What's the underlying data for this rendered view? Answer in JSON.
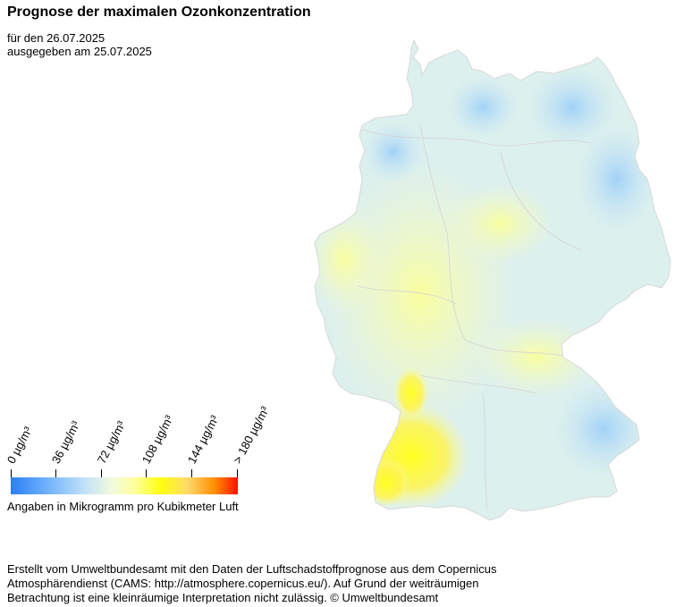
{
  "title": "Prognose der maximalen Ozonkonzentration",
  "subtitle_date": "für den 26.07.2025",
  "subtitle_issued": "ausgegeben am 25.07.2025",
  "legend": {
    "ticks": [
      "0  µg/m³",
      "36  µg/m³",
      "72  µg/m³",
      "108  µg/m³",
      "144  µg/m³",
      "> 180  µg/m³"
    ],
    "caption": "Angaben in Mikrogramm pro Kubikmeter Luft",
    "colors": [
      "#2a7ff5",
      "#7ab8fb",
      "#bfe0f8",
      "#f3fbdc",
      "#ffff9a",
      "#ffff10",
      "#ffd96b",
      "#ff8c00",
      "#ff1100"
    ]
  },
  "footer": {
    "line1": "Erstellt vom Umweltbundesamt mit den Daten der Luftschadstoffprognose aus dem Copernicus",
    "line2": "Atmosphärendienst (CAMS: http://atmosphere.copernicus.eu/). Auf Grund der weiträumigen",
    "line3": "Betrachtung ist eine kleinräumige Interpretation nicht zulässig. © Umweltbundesamt"
  }
}
